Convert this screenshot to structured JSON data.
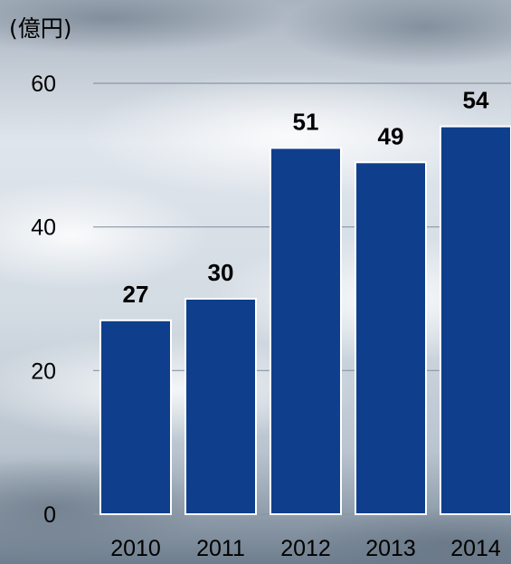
{
  "colors": {
    "bar": "#0f3f8c",
    "bar_border": "#ffffff",
    "grid": "#8a96a6",
    "text": "#000000"
  },
  "chart_data": {
    "type": "bar",
    "categories": [
      "2010",
      "2011",
      "2012",
      "2013",
      "2014"
    ],
    "values": [
      27,
      30,
      51,
      49,
      54
    ],
    "data_labels": [
      "27",
      "30",
      "51",
      "49",
      "54"
    ],
    "unit_label": "(億円)",
    "yticks": [
      "0",
      "20",
      "40",
      "60"
    ],
    "ylim": [
      0,
      60
    ],
    "grid": true,
    "legend": "none"
  }
}
